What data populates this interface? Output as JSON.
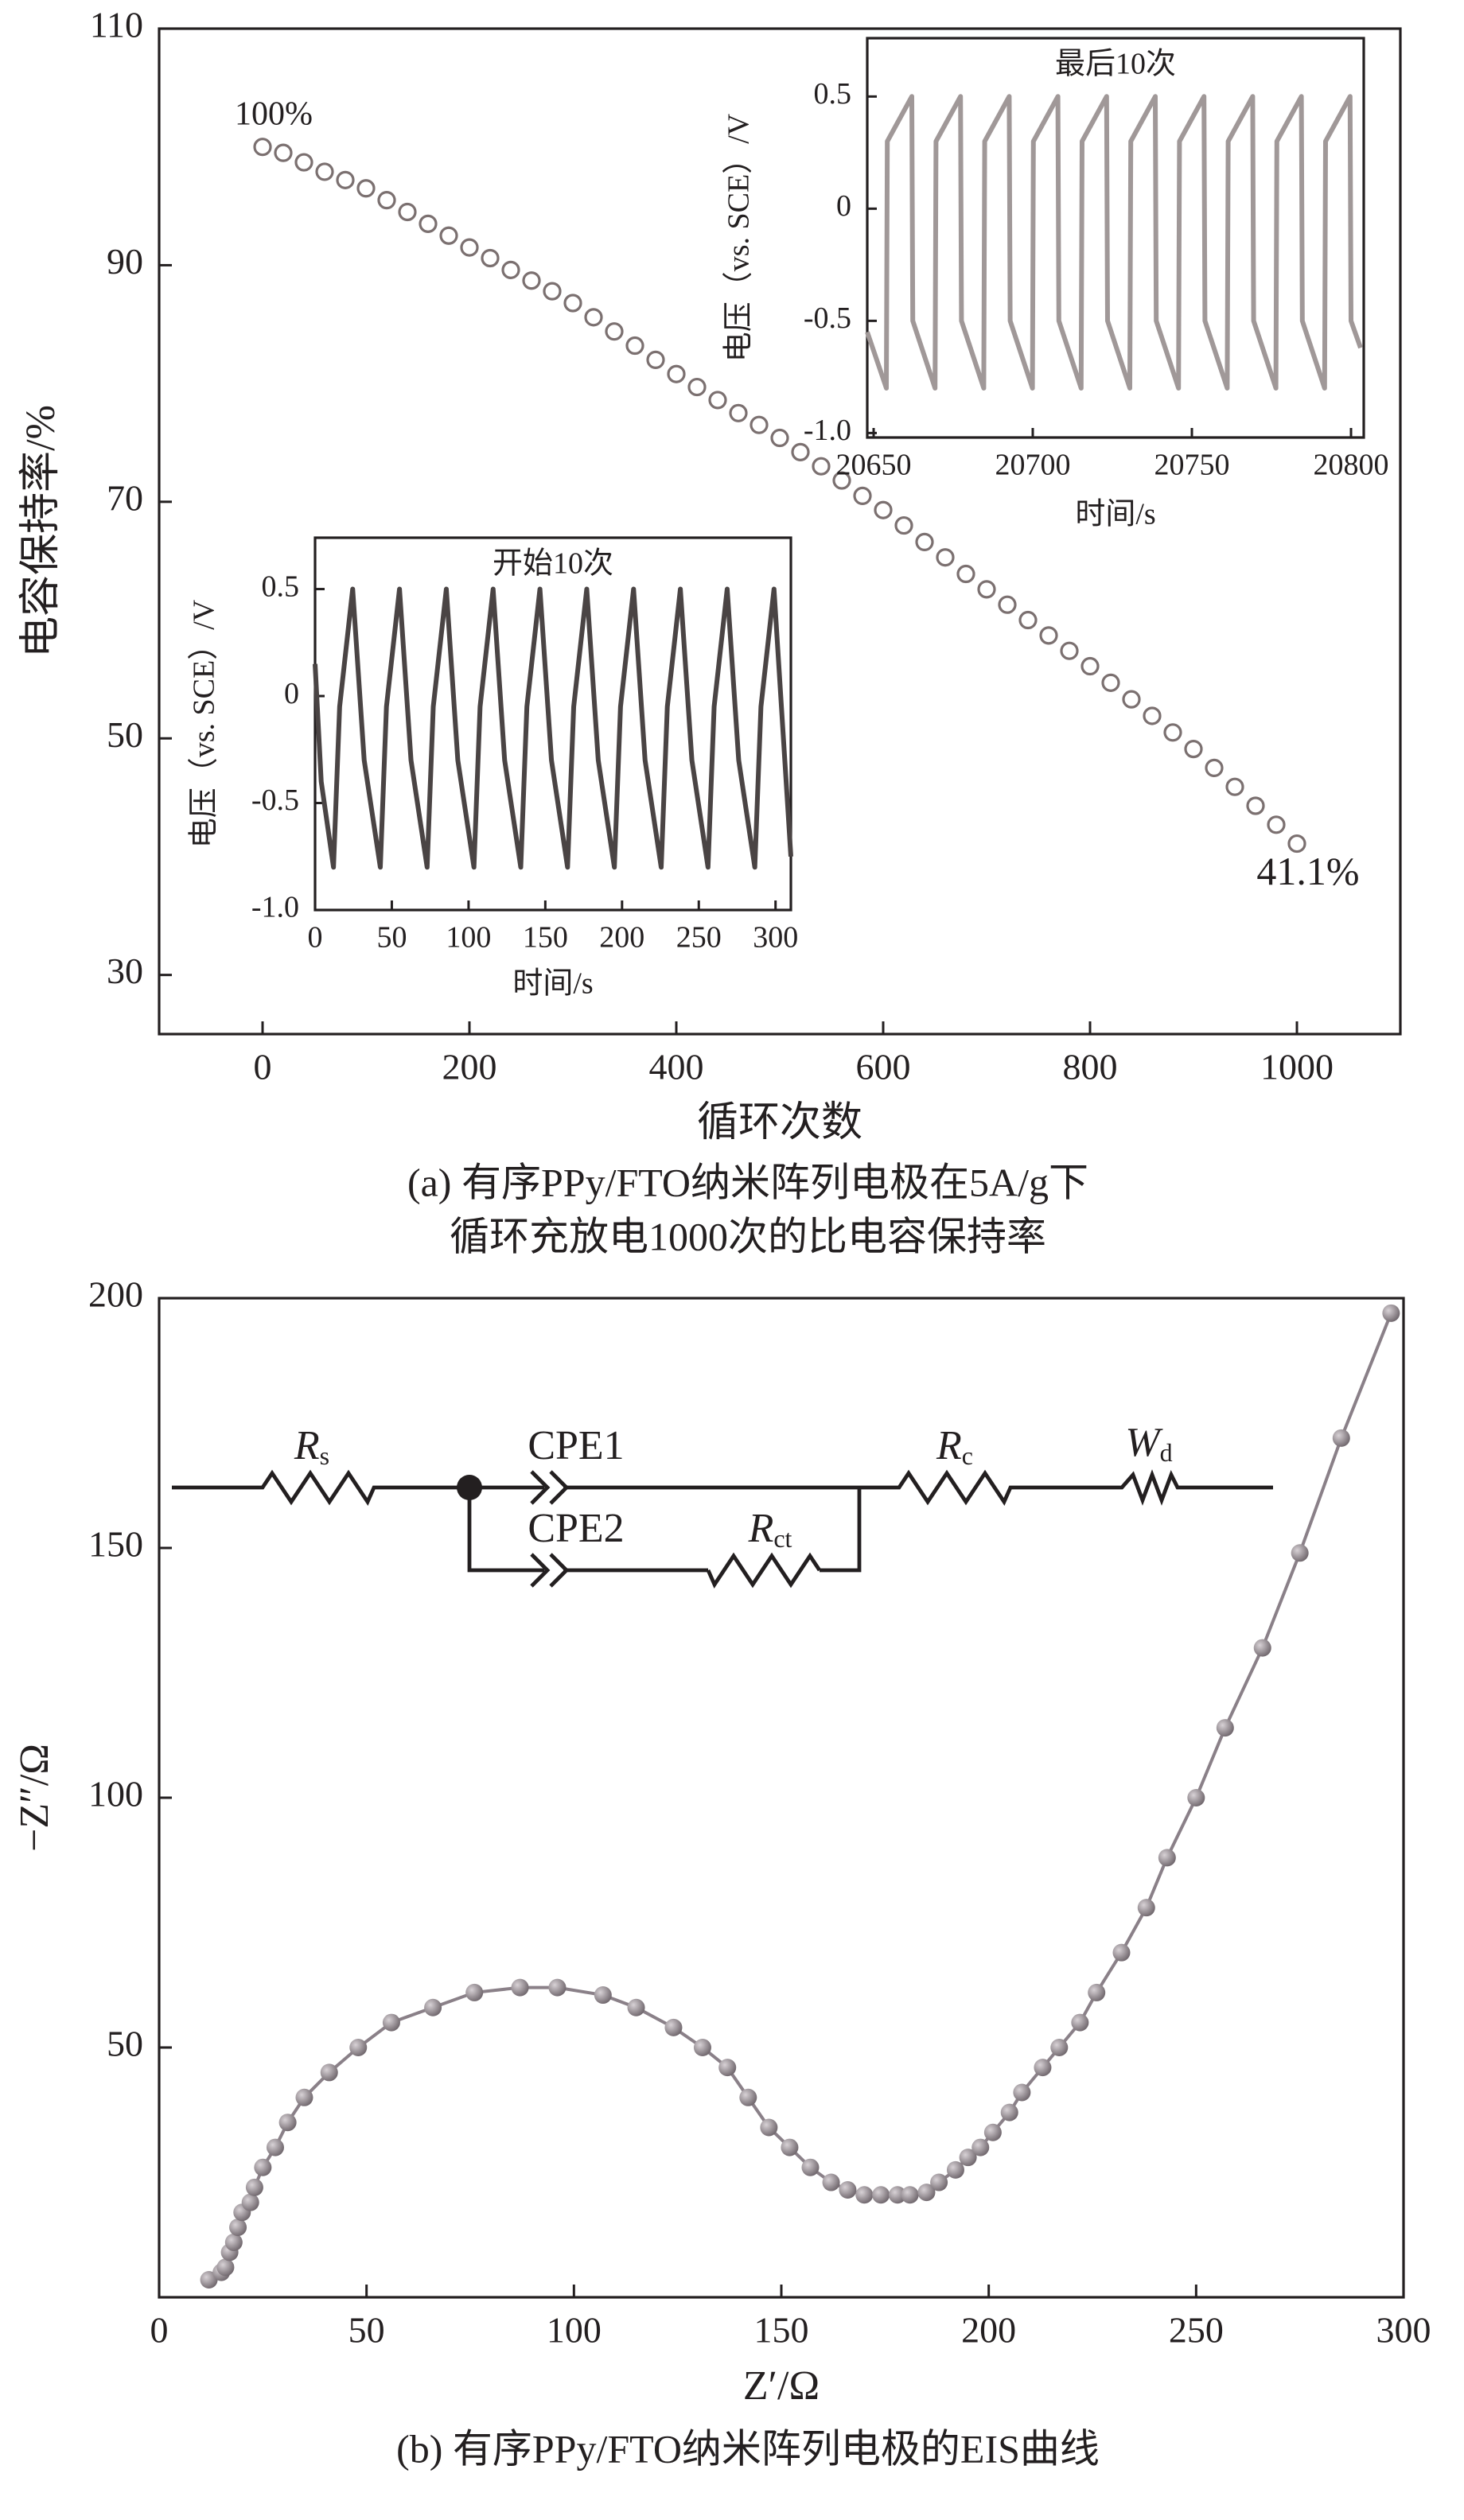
{
  "chart_data": [
    {
      "type": "scatter",
      "xlabel": "循环次数",
      "ylabel": "电容保持率/%",
      "caption": [
        "(a) 有序PPy/FTO纳米阵列电极在5A/g下",
        "循环充放电1000次的比电容保持率"
      ],
      "annotations": [
        "100%",
        "41.1%"
      ],
      "x": [
        0,
        20,
        40,
        60,
        80,
        100,
        120,
        140,
        160,
        180,
        200,
        220,
        240,
        260,
        280,
        300,
        320,
        340,
        360,
        380,
        400,
        420,
        440,
        460,
        480,
        500,
        520,
        540,
        560,
        580,
        600,
        620,
        640,
        660,
        680,
        700,
        720,
        740,
        760,
        780,
        800,
        820,
        840,
        860,
        880,
        900,
        920,
        940,
        960,
        980,
        1000
      ],
      "values": [
        100,
        99.5,
        98.7,
        97.9,
        97.2,
        96.5,
        95.5,
        94.5,
        93.5,
        92.5,
        91.5,
        90.6,
        89.6,
        88.7,
        87.8,
        86.8,
        85.6,
        84.4,
        83.2,
        82.0,
        80.8,
        79.7,
        78.6,
        77.5,
        76.5,
        75.4,
        74.2,
        73.0,
        71.8,
        70.5,
        69.3,
        68.0,
        66.6,
        65.3,
        63.9,
        62.6,
        61.3,
        60.0,
        58.7,
        57.4,
        56.1,
        54.7,
        53.3,
        51.9,
        50.5,
        49.1,
        47.5,
        45.9,
        44.3,
        42.7,
        41.1
      ],
      "color": "#7b7070",
      "xlim": [
        -100,
        1100
      ],
      "ylim": [
        25,
        110
      ],
      "xticks": [
        0,
        200,
        400,
        600,
        800,
        1000
      ],
      "yticks": [
        30,
        50,
        70,
        90,
        110
      ]
    },
    {
      "type": "line",
      "title": "开始10次",
      "xlabel": "时间/s",
      "ylabel": "电压（vs. SCE）/V",
      "x": [
        0,
        4,
        12,
        16,
        24.5,
        32,
        42.5,
        46.5,
        55,
        62.5,
        73,
        77,
        85.5,
        93,
        103.5,
        107.5,
        116,
        123.5,
        134,
        138,
        146.5,
        154,
        164.5,
        168.5,
        177,
        184.5,
        195,
        199,
        207.5,
        215,
        225.5,
        229.5,
        238,
        245.5,
        256,
        260,
        268.5,
        276,
        286.5,
        290.5,
        299,
        310
      ],
      "values": [
        0.15,
        -0.4,
        -0.8,
        -0.05,
        0.5,
        -0.3,
        -0.8,
        -0.05,
        0.5,
        -0.3,
        -0.8,
        -0.05,
        0.5,
        -0.3,
        -0.8,
        -0.05,
        0.5,
        -0.3,
        -0.8,
        -0.05,
        0.5,
        -0.3,
        -0.8,
        -0.05,
        0.5,
        -0.3,
        -0.8,
        -0.05,
        0.5,
        -0.3,
        -0.8,
        -0.05,
        0.5,
        -0.3,
        -0.8,
        -0.05,
        0.5,
        -0.3,
        -0.8,
        -0.05,
        0.5,
        -0.75
      ],
      "color": "#4a4444",
      "xlim": [
        0,
        310
      ],
      "ylim": [
        -1.0,
        0.74
      ],
      "xticks": [
        0,
        50,
        100,
        150,
        200,
        250,
        300
      ],
      "yticks": [
        {
          "value": -1,
          "label": "-1.0"
        },
        -0.5,
        0,
        0.5
      ]
    },
    {
      "type": "line",
      "title": "最后10次",
      "xlabel": "时间/s",
      "ylabel": "电压（vs. SCE）/V",
      "x": [
        20648,
        20654,
        20654.3,
        20662,
        20662.3,
        20669.3,
        20669.6,
        20677.3,
        20677.6,
        20684.6,
        20684.9,
        20692.6,
        20692.9,
        20699.9,
        20700.2,
        20707.9,
        20708.2,
        20715.2,
        20715.5,
        20723.2,
        20723.5,
        20730.5,
        20730.8,
        20738.5,
        20738.8,
        20745.8,
        20746.1,
        20753.8,
        20754.1,
        20761.1,
        20761.4,
        20769.1,
        20769.4,
        20776.4,
        20776.7,
        20784.4,
        20784.7,
        20791.7,
        20792,
        20799.7,
        20800,
        20803
      ],
      "values": [
        -0.55,
        -0.8,
        0.3,
        0.5,
        -0.5,
        -0.8,
        0.3,
        0.5,
        -0.5,
        -0.8,
        0.3,
        0.5,
        -0.5,
        -0.8,
        0.3,
        0.5,
        -0.5,
        -0.8,
        0.3,
        0.5,
        -0.5,
        -0.8,
        0.3,
        0.5,
        -0.5,
        -0.8,
        0.3,
        0.5,
        -0.5,
        -0.8,
        0.3,
        0.5,
        -0.5,
        -0.8,
        0.3,
        0.5,
        -0.5,
        -0.8,
        0.3,
        0.5,
        -0.5,
        -0.62
      ],
      "color": "#a09898",
      "xlim": [
        20648,
        20804
      ],
      "ylim": [
        -1.02,
        0.76
      ],
      "xticks": [
        20650,
        20700,
        20750,
        20800
      ],
      "yticks": [
        {
          "value": -1,
          "label": "-1.0"
        },
        -0.5,
        0,
        0.5
      ]
    },
    {
      "type": "scatter",
      "connect": true,
      "xlabel": "Z′/Ω",
      "ylabel": "−Z″/Ω",
      "caption": [
        "(b) 有序PPy/FTO纳米阵列电极的EIS曲线"
      ],
      "x": [
        12,
        15,
        16,
        17,
        18,
        19,
        20,
        22,
        23,
        25,
        28,
        31,
        35,
        41,
        48,
        56,
        66,
        76,
        87,
        96,
        107,
        115,
        124,
        131,
        137,
        142,
        147,
        152,
        157,
        162,
        166,
        170,
        174,
        178,
        181,
        185,
        188,
        192,
        195,
        198,
        201,
        205,
        208,
        213,
        217,
        222,
        226,
        232,
        238,
        243,
        250,
        257,
        266,
        275,
        285,
        297
      ],
      "values": [
        3.5,
        5,
        6,
        9,
        11,
        14,
        17,
        19,
        22,
        26,
        30,
        35,
        40,
        45,
        50,
        55,
        58,
        61,
        62,
        62,
        60.5,
        58,
        54,
        50,
        46,
        40,
        34,
        30,
        26,
        23,
        21.5,
        20.5,
        20.5,
        20.5,
        20.5,
        21,
        23,
        25.5,
        28,
        30,
        33,
        37,
        41,
        46,
        50,
        55,
        61,
        69,
        78,
        88,
        100,
        114,
        130,
        149,
        172,
        197
      ],
      "color": "#8a8088",
      "xlim": [
        0,
        300
      ],
      "ylim": [
        0,
        200
      ],
      "xticks": [
        0,
        50,
        100,
        150,
        200,
        250,
        300
      ],
      "yticks": [
        50,
        100,
        150,
        200
      ]
    }
  ],
  "circuit": {
    "elements": [
      {
        "symbol": "R",
        "sub": "s"
      },
      {
        "symbol": "CPE1"
      },
      {
        "symbol": "CPE2"
      },
      {
        "symbol": "R",
        "sub": "ct"
      },
      {
        "symbol": "R",
        "sub": "c"
      },
      {
        "symbol": "W",
        "sub": "d"
      }
    ]
  }
}
